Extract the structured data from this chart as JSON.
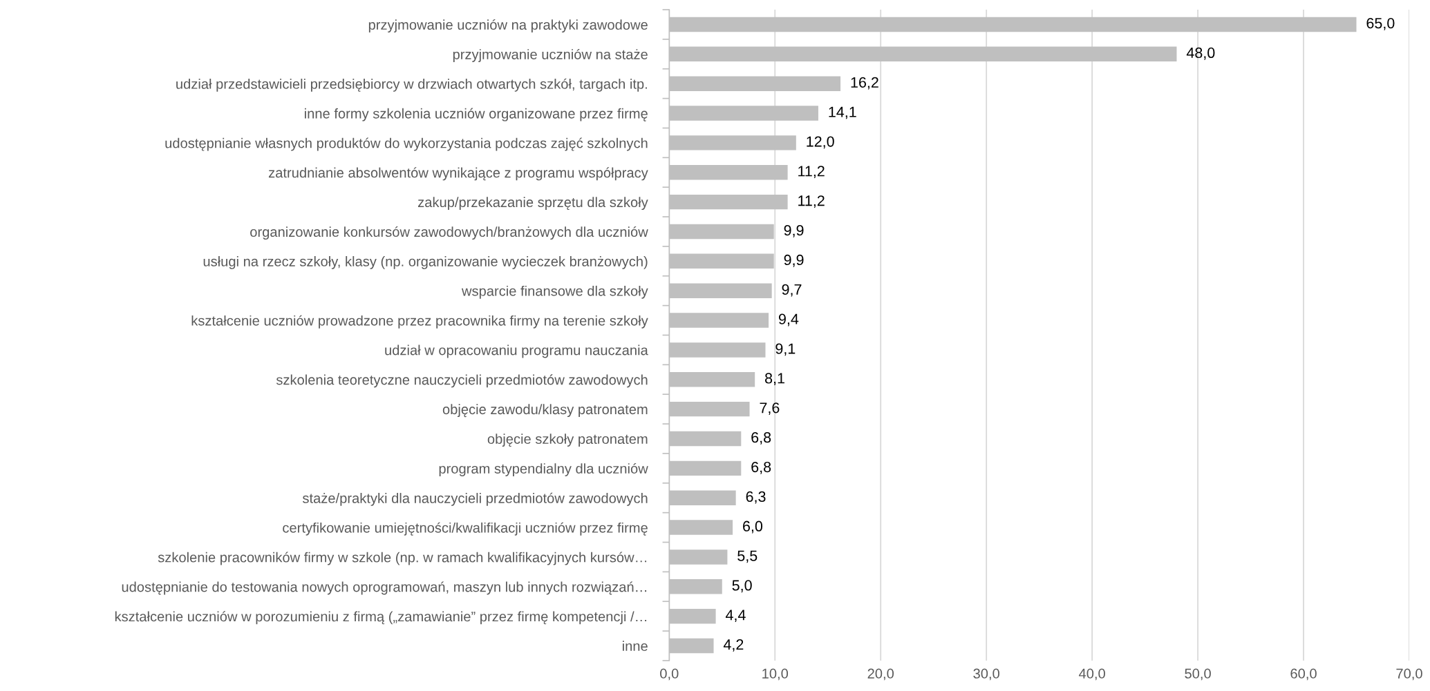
{
  "chart_data": {
    "type": "bar",
    "orientation": "horizontal",
    "categories": [
      "przyjmowanie uczniów na praktyki zawodowe",
      "przyjmowanie uczniów na staże",
      "udział przedstawicieli przedsiębiorcy w drzwiach otwartych szkół, targach itp.",
      "inne formy szkolenia uczniów organizowane przez firmę",
      "udostępnianie własnych produktów do wykorzystania podczas zajęć szkolnych",
      "zatrudnianie absolwentów wynikające z programu współpracy",
      "zakup/przekazanie sprzętu dla szkoły",
      "organizowanie konkursów zawodowych/branżowych dla uczniów",
      "usługi na rzecz szkoły, klasy (np. organizowanie wycieczek branżowych)",
      "wsparcie finansowe dla szkoły",
      "kształcenie uczniów prowadzone przez pracownika firmy na terenie szkoły",
      "udział w opracowaniu programu nauczania",
      "szkolenia teoretyczne nauczycieli przedmiotów zawodowych",
      "objęcie zawodu/klasy patronatem",
      "objęcie szkoły patronatem",
      "program stypendialny dla uczniów",
      "staże/praktyki dla nauczycieli przedmiotów zawodowych",
      "certyfikowanie umiejętności/kwalifikacji uczniów przez firmę",
      "szkolenie pracowników firmy w szkole (np. w ramach kwalifikacyjnych kursów…",
      "udostępnianie do testowania nowych oprogramowań, maszyn lub innych rozwiązań…",
      "kształcenie uczniów w porozumieniu z firmą („zamawianie” przez firmę kompetencji /…",
      "inne"
    ],
    "values": [
      65.0,
      48.0,
      16.2,
      14.1,
      12.0,
      11.2,
      11.2,
      9.9,
      9.9,
      9.7,
      9.4,
      9.1,
      8.1,
      7.6,
      6.8,
      6.8,
      6.3,
      6.0,
      5.5,
      5.0,
      4.4,
      4.2
    ],
    "value_labels": [
      "65,0",
      "48,0",
      "16,2",
      "14,1",
      "12,0",
      "11,2",
      "11,2",
      "9,9",
      "9,9",
      "9,7",
      "9,4",
      "9,1",
      "8,1",
      "7,6",
      "6,8",
      "6,8",
      "6,3",
      "6,0",
      "5,5",
      "5,0",
      "4,4",
      "4,2"
    ],
    "color": "#bfbfbf",
    "xlim": [
      0,
      70
    ],
    "xticks": [
      {
        "value": 0,
        "label": "0,0"
      },
      {
        "value": 10,
        "label": "10,0"
      },
      {
        "value": 20,
        "label": "20,0"
      },
      {
        "value": 30,
        "label": "30,0"
      },
      {
        "value": 40,
        "label": "40,0"
      },
      {
        "value": 50,
        "label": "50,0"
      },
      {
        "value": 60,
        "label": "60,0"
      },
      {
        "value": 70,
        "label": "70,0"
      }
    ],
    "grid": "x"
  }
}
